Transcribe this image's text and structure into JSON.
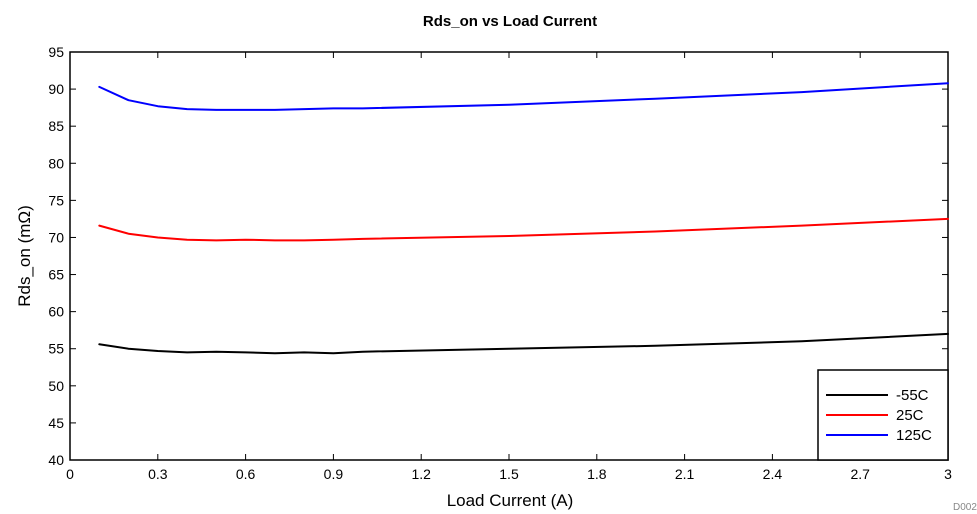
{
  "chart_data": {
    "type": "line",
    "title": "Rds_on vs Load Current",
    "xlabel": "Load Current (A)",
    "ylabel": "Rds_on (mΩ)",
    "xlim": [
      0,
      3
    ],
    "ylim": [
      40,
      95
    ],
    "x_ticks": [
      "0",
      "0.3",
      "0.6",
      "0.9",
      "1.2",
      "1.5",
      "1.8",
      "2.1",
      "2.4",
      "2.7",
      "3"
    ],
    "y_ticks": [
      "40",
      "45",
      "50",
      "55",
      "60",
      "65",
      "70",
      "75",
      "80",
      "85",
      "90",
      "95"
    ],
    "grid": false,
    "legend_position": "bottom-right",
    "figure_code": "D002",
    "series": [
      {
        "name": "-55C",
        "color": "#000000",
        "x": [
          0.1,
          0.2,
          0.3,
          0.4,
          0.5,
          0.6,
          0.7,
          0.8,
          0.9,
          1.0,
          1.5,
          2.0,
          2.5,
          3.0
        ],
        "y": [
          55.6,
          55.0,
          54.7,
          54.5,
          54.6,
          54.5,
          54.4,
          54.5,
          54.4,
          54.6,
          55.0,
          55.4,
          56.0,
          57.0
        ]
      },
      {
        "name": "25C",
        "color": "#ff0000",
        "x": [
          0.1,
          0.2,
          0.3,
          0.4,
          0.5,
          0.6,
          0.7,
          0.8,
          0.9,
          1.0,
          1.5,
          2.0,
          2.5,
          3.0
        ],
        "y": [
          71.6,
          70.5,
          70.0,
          69.7,
          69.6,
          69.7,
          69.6,
          69.6,
          69.7,
          69.8,
          70.2,
          70.8,
          71.6,
          72.5
        ]
      },
      {
        "name": "125C",
        "color": "#0000ff",
        "x": [
          0.1,
          0.2,
          0.3,
          0.4,
          0.5,
          0.6,
          0.7,
          0.8,
          0.9,
          1.0,
          1.5,
          2.0,
          2.5,
          3.0
        ],
        "y": [
          90.3,
          88.5,
          87.7,
          87.3,
          87.2,
          87.2,
          87.2,
          87.3,
          87.4,
          87.4,
          87.9,
          88.7,
          89.6,
          90.8
        ]
      }
    ]
  }
}
